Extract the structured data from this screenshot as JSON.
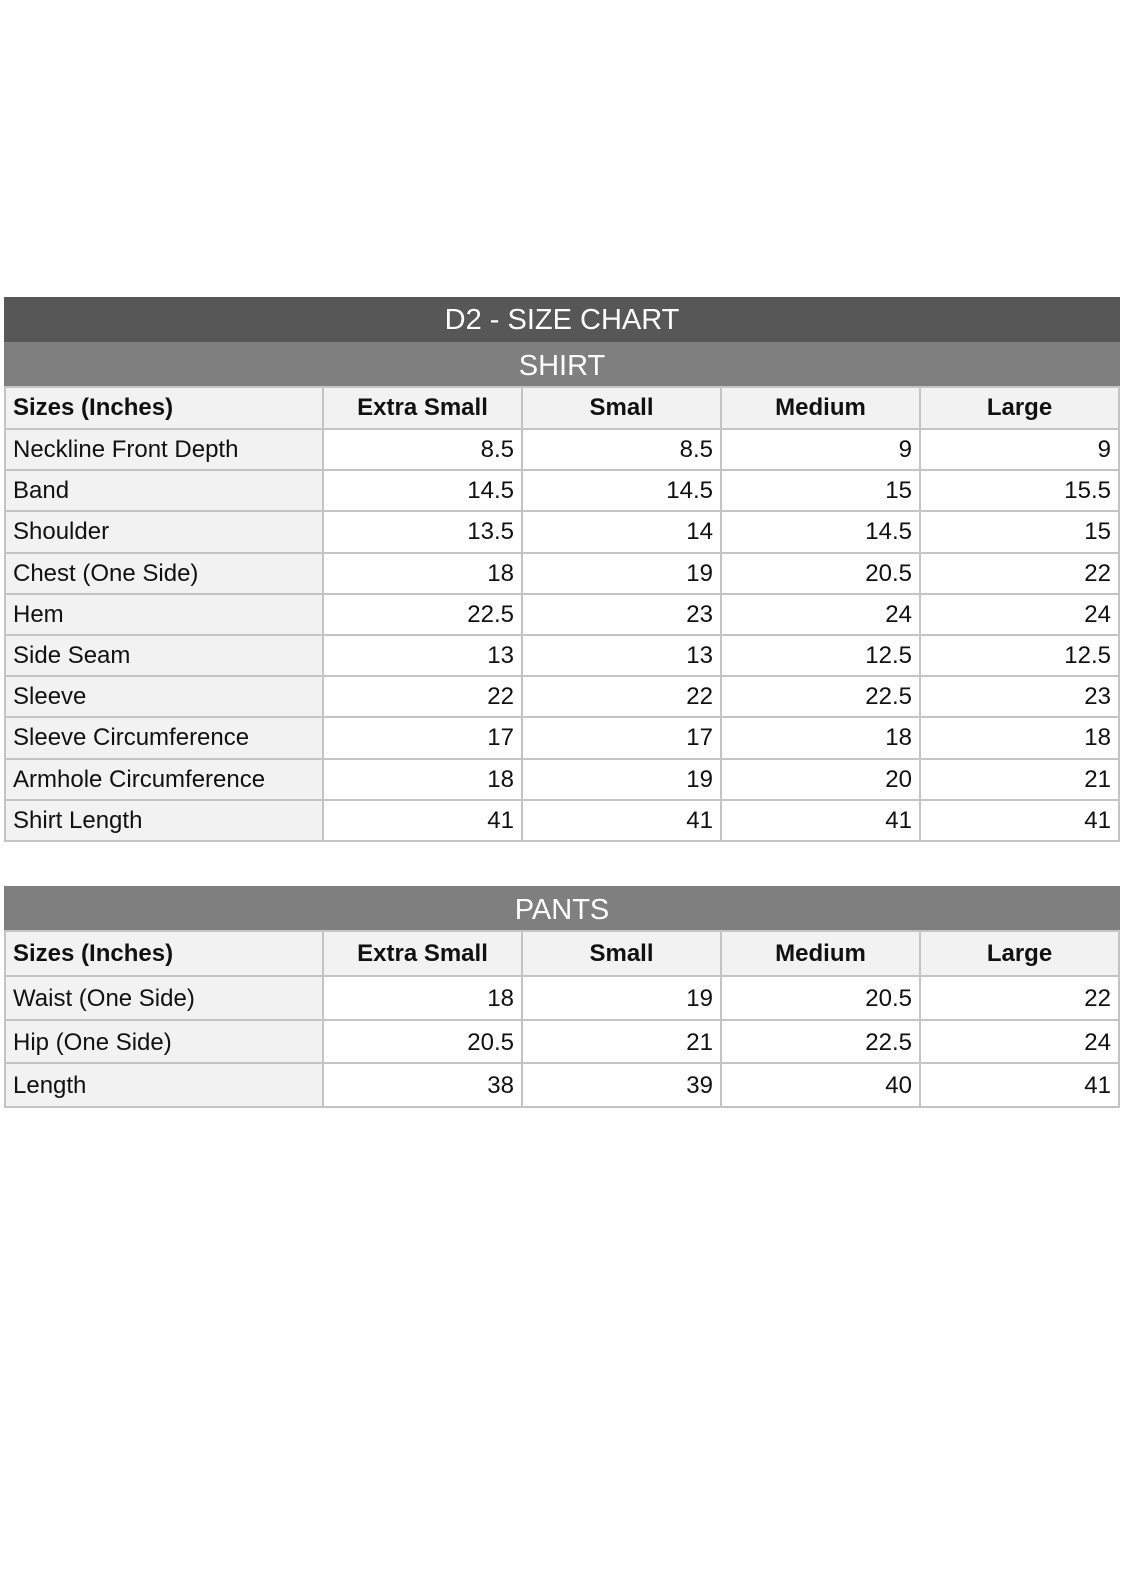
{
  "title": "D2 - SIZE CHART",
  "colors": {
    "title_bar": "#575757",
    "section_bar": "#7f7f7f",
    "header_bg": "#f2f2f2",
    "border": "#c4c4c4"
  },
  "shirt": {
    "section": "SHIRT",
    "columns": [
      "Sizes (Inches)",
      "Extra Small",
      "Small",
      "Medium",
      "Large"
    ],
    "rows": [
      [
        "Neckline Front Depth",
        "8.5",
        "8.5",
        "9",
        "9"
      ],
      [
        "Band",
        "14.5",
        "14.5",
        "15",
        "15.5"
      ],
      [
        "Shoulder",
        "13.5",
        "14",
        "14.5",
        "15"
      ],
      [
        "Chest (One Side)",
        "18",
        "19",
        "20.5",
        "22"
      ],
      [
        "Hem",
        "22.5",
        "23",
        "24",
        "24"
      ],
      [
        "Side Seam",
        "13",
        "13",
        "12.5",
        "12.5"
      ],
      [
        "Sleeve",
        "22",
        "22",
        "22.5",
        "23"
      ],
      [
        "Sleeve Circumference",
        "17",
        "17",
        "18",
        "18"
      ],
      [
        "Armhole Circumference",
        "18",
        "19",
        "20",
        "21"
      ],
      [
        "Shirt Length",
        "41",
        "41",
        "41",
        "41"
      ]
    ]
  },
  "pants": {
    "section": "PANTS",
    "columns": [
      "Sizes (Inches)",
      "Extra Small",
      "Small",
      "Medium",
      "Large"
    ],
    "rows": [
      [
        "Waist (One Side)",
        "18",
        "19",
        "20.5",
        "22"
      ],
      [
        "Hip (One Side)",
        "20.5",
        "21",
        "22.5",
        "24"
      ],
      [
        "Length",
        "38",
        "39",
        "40",
        "41"
      ]
    ]
  }
}
